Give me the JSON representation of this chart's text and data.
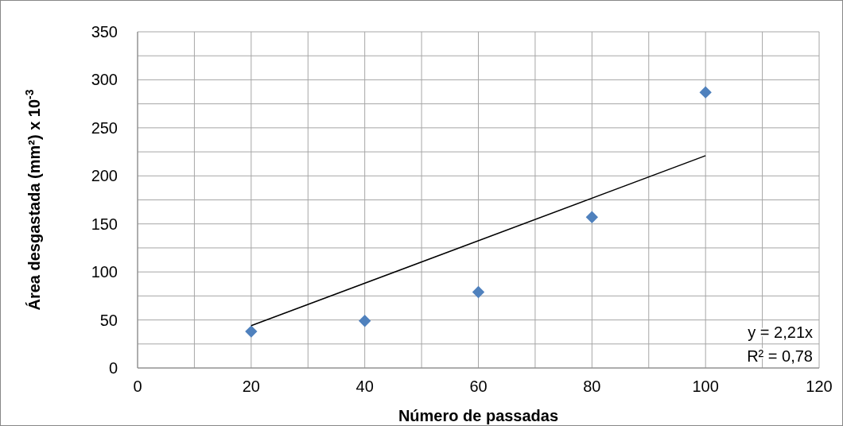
{
  "chart_data": {
    "type": "scatter",
    "xlabel": "Número de passadas",
    "ylabel": "Área desgastada (mm²) x 10$^{-3}$",
    "x": [
      20,
      40,
      60,
      80,
      100
    ],
    "series": [
      {
        "color": "#4f81bd",
        "marker": "diamond",
        "values": [
          38,
          49,
          79,
          157,
          287
        ]
      },
      {
        "type": "line",
        "color": "#000000",
        "x": [
          20,
          100
        ],
        "values": [
          44,
          221
        ],
        "marker": "none",
        "line_style": "solid"
      }
    ],
    "xlim": [
      0,
      120
    ],
    "ylim": [
      0,
      350
    ],
    "xticks": [
      0,
      {
        "value": 10,
        "label": null
      },
      20,
      {
        "value": 30,
        "label": null
      },
      40,
      {
        "value": 50,
        "label": null
      },
      60,
      {
        "value": 70,
        "label": null
      },
      80,
      {
        "value": 90,
        "label": null
      },
      100,
      {
        "value": 110,
        "label": null
      },
      120
    ],
    "yticks": [
      0,
      {
        "value": 25,
        "label": null
      },
      50,
      {
        "value": 75,
        "label": null
      },
      100,
      {
        "value": 125,
        "label": null
      },
      150,
      {
        "value": 175,
        "label": null
      },
      200,
      {
        "value": 225,
        "label": null
      },
      250,
      {
        "value": 275,
        "label": null
      },
      300,
      {
        "value": 325,
        "label": null
      },
      350
    ],
    "grid": true,
    "annotations": [
      "y = 2,21x",
      "R² = 0,78"
    ]
  }
}
